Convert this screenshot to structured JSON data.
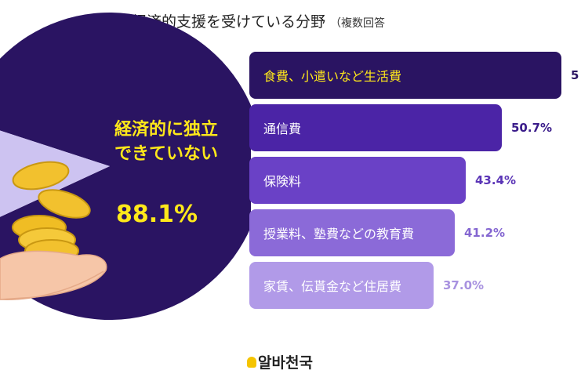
{
  "title": "経済的支援を受けている分野",
  "subtitle": "（複数回答",
  "pie": {
    "label": "経済的に独立できていない",
    "value_text": "88.1%",
    "value": 88.1,
    "colors": {
      "main": "#2a1462",
      "rest": "#cdc3f1"
    }
  },
  "chart_data": {
    "type": "bar",
    "orientation": "horizontal",
    "categories": [
      "食費、小遣いなど生活費",
      "通信費",
      "保険料",
      "授業料、塾費などの教育費",
      "家賃、伝貰金など住居費"
    ],
    "values": [
      null,
      50.7,
      43.4,
      41.2,
      37.0
    ],
    "value_labels": [
      "5",
      "50.7%",
      "43.4%",
      "41.2%",
      "37.0%"
    ],
    "colors": [
      "#2a1462",
      "#4b24a6",
      "#6a41c6",
      "#8b6ad8",
      "#b19ae8"
    ],
    "label_colors": [
      "#2a1462",
      "#3a1c8a",
      "#5a34b6",
      "#8466d1",
      "#a892e0"
    ]
  },
  "logo": {
    "text": "알바천국",
    "color": "#f5c400"
  },
  "decoration": "hand-holding-gold-coins"
}
